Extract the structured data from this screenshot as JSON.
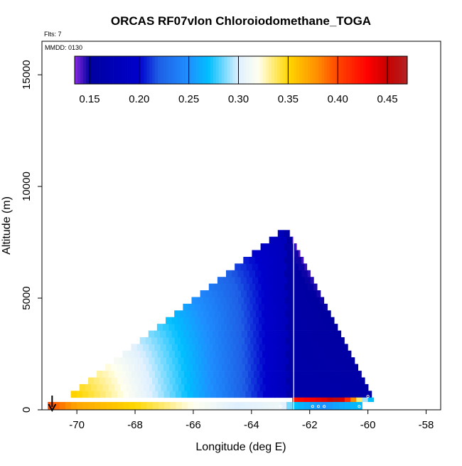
{
  "chart_data": {
    "type": "heatmap",
    "title": "ORCAS RF07vlon Chloroiodomethane_TOGA",
    "corner_labels": {
      "flights": "Flts: 7",
      "date": "MMDD: 0130"
    },
    "xlabel": "Longitude (deg E)",
    "ylabel": "Altitude (m)",
    "xlim": [
      -71.2,
      -57.5
    ],
    "ylim": [
      0,
      16500
    ],
    "x_ticks": [
      -70,
      -68,
      -66,
      -64,
      -62,
      -60,
      -58
    ],
    "x_tick_labels": [
      "-70",
      "-68",
      "-66",
      "-64",
      "-62",
      "-60",
      "-58"
    ],
    "y_ticks": [
      0,
      5000,
      10000,
      15000
    ],
    "y_tick_labels": [
      "0",
      "5000",
      "10000",
      "15000"
    ],
    "colorbar": {
      "range": [
        0.135,
        0.47
      ],
      "ticks": [
        0.15,
        0.2,
        0.25,
        0.3,
        0.35,
        0.4,
        0.45
      ],
      "tick_labels": [
        "0.15",
        "0.20",
        "0.25",
        "0.30",
        "0.35",
        "0.40",
        "0.45"
      ],
      "stops": [
        [
          0.135,
          "#8a2be2"
        ],
        [
          0.15,
          "#0000a0"
        ],
        [
          0.2,
          "#0000cd"
        ],
        [
          0.22,
          "#1e5fe6"
        ],
        [
          0.25,
          "#1e90ff"
        ],
        [
          0.27,
          "#00bfff"
        ],
        [
          0.3,
          "#e0f0ff"
        ],
        [
          0.32,
          "#fffff0"
        ],
        [
          0.35,
          "#ffd700"
        ],
        [
          0.38,
          "#ff8c00"
        ],
        [
          0.4,
          "#ff4500"
        ],
        [
          0.43,
          "#ff0000"
        ],
        [
          0.45,
          "#c80000"
        ],
        [
          0.47,
          "#b22222"
        ]
      ]
    },
    "field": {
      "model": "triangle",
      "apex_lon": -62.8,
      "apex_alt": 8200,
      "left_base_lon": -70.9,
      "right_base_lon": -59.6,
      "cell_lon_width": 0.2,
      "cell_alt_height": 300,
      "value_at_left_base": 0.37,
      "value_at_apex_west": 0.17,
      "value_at_apex_east": 0.14,
      "value_east_low": 0.16
    },
    "surface_row": {
      "alt_range": [
        0,
        350
      ],
      "lon_values": [
        [
          -71.0,
          0.4
        ],
        [
          -70.0,
          0.37
        ],
        [
          -68.0,
          0.35
        ],
        [
          -66.0,
          0.32
        ],
        [
          -64.5,
          0.3
        ],
        [
          -63.0,
          0.31
        ],
        [
          -62.5,
          0.27
        ],
        [
          -61.5,
          0.25
        ],
        [
          -61.0,
          0.26
        ],
        [
          -60.2,
          0.27
        ]
      ]
    },
    "boundary_row": {
      "alt_range": [
        350,
        550
      ],
      "lon_range": [
        -62.6,
        -59.8
      ],
      "lon_values": [
        [
          -62.6,
          0.42
        ],
        [
          -61.5,
          0.44
        ],
        [
          -61.0,
          0.46
        ],
        [
          -60.5,
          0.38
        ],
        [
          -60.0,
          0.27
        ]
      ]
    },
    "profile_line_lon": -62.55,
    "sample_points": [
      [
        -62.8,
        8200
      ],
      [
        -61.1,
        4700
      ],
      [
        -60.0,
        600
      ],
      [
        -61.9,
        150
      ],
      [
        -61.7,
        150
      ],
      [
        -61.5,
        150
      ],
      [
        -60.3,
        150
      ],
      [
        -63.0,
        150
      ]
    ],
    "arrow_lon": -70.85
  }
}
